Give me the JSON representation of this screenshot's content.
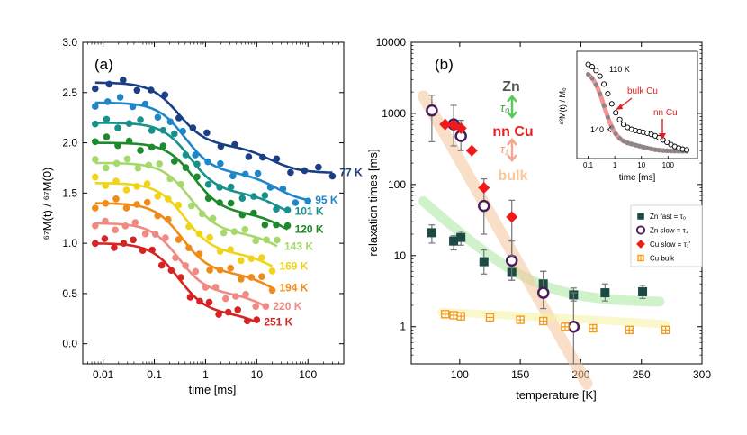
{
  "chart_data": [
    {
      "type": "scatter",
      "panel_label": "(a)",
      "xlabel": "time [ms]",
      "ylabel": "⁶⁷M(t) / ⁶⁷M(0)",
      "xscale": "log",
      "xlim": [
        0.004,
        500
      ],
      "ylim": [
        -0.2,
        3.0
      ],
      "xticks": [
        {
          "v": 0.01,
          "label": "0.01"
        },
        {
          "v": 0.1,
          "label": "0.1"
        },
        {
          "v": 1,
          "label": "1"
        },
        {
          "v": 10,
          "label": "10"
        },
        {
          "v": 100,
          "label": "100"
        }
      ],
      "yticks": [
        "0.0",
        "0.5",
        "1.0",
        "1.5",
        "2.0",
        "2.5",
        "3.0"
      ],
      "series": [
        {
          "name": "77 K",
          "color": "#1a3f85",
          "base": 1.7,
          "amp": 0.9,
          "t0": 0.3,
          "tmax": 300
        },
        {
          "name": "95 K",
          "color": "#1f86c8",
          "base": 1.4,
          "amp": 1.0,
          "t0": 0.4,
          "tmax": 100
        },
        {
          "name": "101 K",
          "color": "#16918c",
          "base": 1.2,
          "amp": 1.0,
          "t0": 0.5,
          "tmax": 40
        },
        {
          "name": "120 K",
          "color": "#1d8a2c",
          "base": 1.0,
          "amp": 1.0,
          "t0": 0.6,
          "tmax": 40
        },
        {
          "name": "143 K",
          "color": "#a6d86c",
          "base": 0.8,
          "amp": 1.0,
          "t0": 0.5,
          "tmax": 25
        },
        {
          "name": "169 K",
          "color": "#f0d418",
          "base": 0.6,
          "amp": 1.0,
          "t0": 0.4,
          "tmax": 20
        },
        {
          "name": "194 K",
          "color": "#f08a18",
          "base": 0.4,
          "amp": 1.0,
          "t0": 0.35,
          "tmax": 20
        },
        {
          "name": "220 K",
          "color": "#f08a82",
          "base": 0.2,
          "amp": 1.0,
          "t0": 0.3,
          "tmax": 15
        },
        {
          "name": "251 K",
          "color": "#d62424",
          "base": 0.0,
          "amp": 1.0,
          "t0": 0.3,
          "tmax": 10
        }
      ]
    },
    {
      "type": "scatter",
      "panel_label": "(b)",
      "xlabel": "temperature [K]",
      "ylabel": "relaxation times [ms]",
      "yscale": "log",
      "xlim": [
        60,
        300
      ],
      "ylim": [
        0.3,
        10000
      ],
      "xticks": [
        {
          "v": 100,
          "label": "100"
        },
        {
          "v": 150,
          "label": "150"
        },
        {
          "v": 200,
          "label": "200"
        },
        {
          "v": 250,
          "label": "250"
        },
        {
          "v": 300,
          "label": "300"
        }
      ],
      "yticks": [
        {
          "v": 1,
          "label": "1"
        },
        {
          "v": 10,
          "label": "10"
        },
        {
          "v": 100,
          "label": "100"
        },
        {
          "v": 1000,
          "label": "1000"
        },
        {
          "v": 10000,
          "label": "10000"
        }
      ],
      "series": [
        {
          "name": "Zn fast = τ₀",
          "marker": "filled-square",
          "color": "#1c4a45",
          "x": [
            77,
            95,
            101,
            120,
            143,
            169,
            194,
            220,
            251
          ],
          "y": [
            21,
            16,
            18,
            8.2,
            5.8,
            4,
            2.8,
            3,
            3.1
          ],
          "err": [
            [
              15,
              27
            ],
            [
              12,
              19
            ],
            [
              14,
              22
            ],
            [
              5.5,
              12
            ],
            [
              4.5,
              7.5
            ],
            [
              2.8,
              6
            ],
            [
              2.3,
              3.5
            ],
            [
              2.3,
              4
            ],
            [
              2.5,
              3.8
            ]
          ]
        },
        {
          "name": "Zn slow = τ₁",
          "marker": "open-circle",
          "color": "#4a1c5c",
          "x": [
            77,
            95,
            101,
            120,
            143,
            169,
            194
          ],
          "y": [
            1100,
            700,
            480,
            50,
            8.5,
            3,
            1
          ],
          "err": [
            [
              400,
              1800
            ],
            [
              350,
              1300
            ],
            [
              300,
              800
            ],
            [
              20,
              120
            ],
            [
              4.5,
              16
            ],
            [
              1.8,
              6
            ],
            [
              0.3,
              3
            ]
          ]
        },
        {
          "name": "Cu slow = τ₁′",
          "marker": "diamond",
          "color": "#f01a1a",
          "x": [
            88,
            95,
            101,
            110,
            120,
            143
          ],
          "y": [
            700,
            680,
            620,
            300,
            90,
            35
          ],
          "err": [
            null,
            null,
            null,
            null,
            null,
            [
              10,
              60
            ]
          ]
        },
        {
          "name": "Cu bulk",
          "marker": "crossed-square",
          "color": "#f39c1a",
          "x": [
            88,
            95,
            101,
            125,
            150,
            169,
            187,
            210,
            240,
            270
          ],
          "y": [
            1.5,
            1.45,
            1.4,
            1.35,
            1.25,
            1.2,
            1.0,
            0.95,
            0.9,
            0.9
          ]
        }
      ],
      "annotations": {
        "zn": "Zn",
        "tau0": "τ₀",
        "nncu": "nn Cu",
        "tau1": "τ₁",
        "bulk": "bulk"
      },
      "inset": {
        "xlabel": "time [ms]",
        "ylabel": "⁶³M(t) / M₀",
        "xticks": [
          {
            "v": 0.1,
            "label": "0.1"
          },
          {
            "v": 1,
            "label": "1"
          },
          {
            "v": 10,
            "label": "10"
          },
          {
            "v": 100,
            "label": "100"
          }
        ],
        "labels": {
          "t110": "110 K",
          "t140": "140 K",
          "bulk": "bulk Cu",
          "nn": "nn Cu"
        }
      }
    }
  ]
}
